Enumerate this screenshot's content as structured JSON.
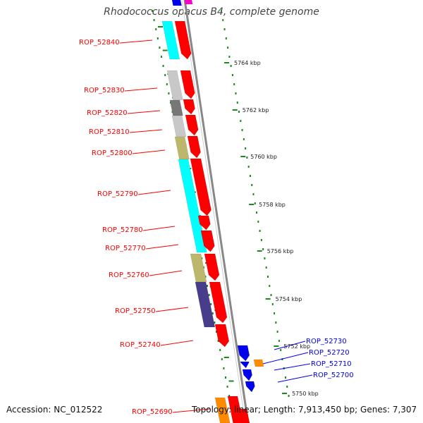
{
  "title": "Rhodococcus opacus B4, complete genome",
  "footer": {
    "accession": "Accession: NC_012522",
    "topology": "Topology: linear;",
    "length": "Length: 7,913,450 bp;",
    "genes": "Genes: 7,307"
  },
  "colors": {
    "forward": "#ff0000",
    "reverse": "#0000ee",
    "tick": "#1a8a1a",
    "backbone": "#888888",
    "cog_cyan": "#00ffff",
    "cog_lightgray": "#c8c8c8",
    "cog_darkgray": "#777777",
    "cog_khaki": "#bdb76b",
    "cog_slateblue": "#483d8b",
    "cog_orange": "#ff8c00",
    "cog_magenta": "#ff00cc"
  },
  "scale_labels": [
    "5764 kbp",
    "5762 kbp",
    "5760 kbp",
    "5758 kbp",
    "5756 kbp",
    "5754 kbp",
    "5752 kbp",
    "5750 kbp"
  ],
  "genes_left": [
    "ROP_52840",
    "ROP_52830",
    "ROP_52820",
    "ROP_52810",
    "ROP_52800",
    "ROP_52790",
    "ROP_52780",
    "ROP_52770",
    "ROP_52760",
    "ROP_52750",
    "ROP_52740",
    "ROP_52690"
  ],
  "genes_right": [
    "ROP_52730",
    "ROP_52720",
    "ROP_52710",
    "ROP_52700"
  ]
}
